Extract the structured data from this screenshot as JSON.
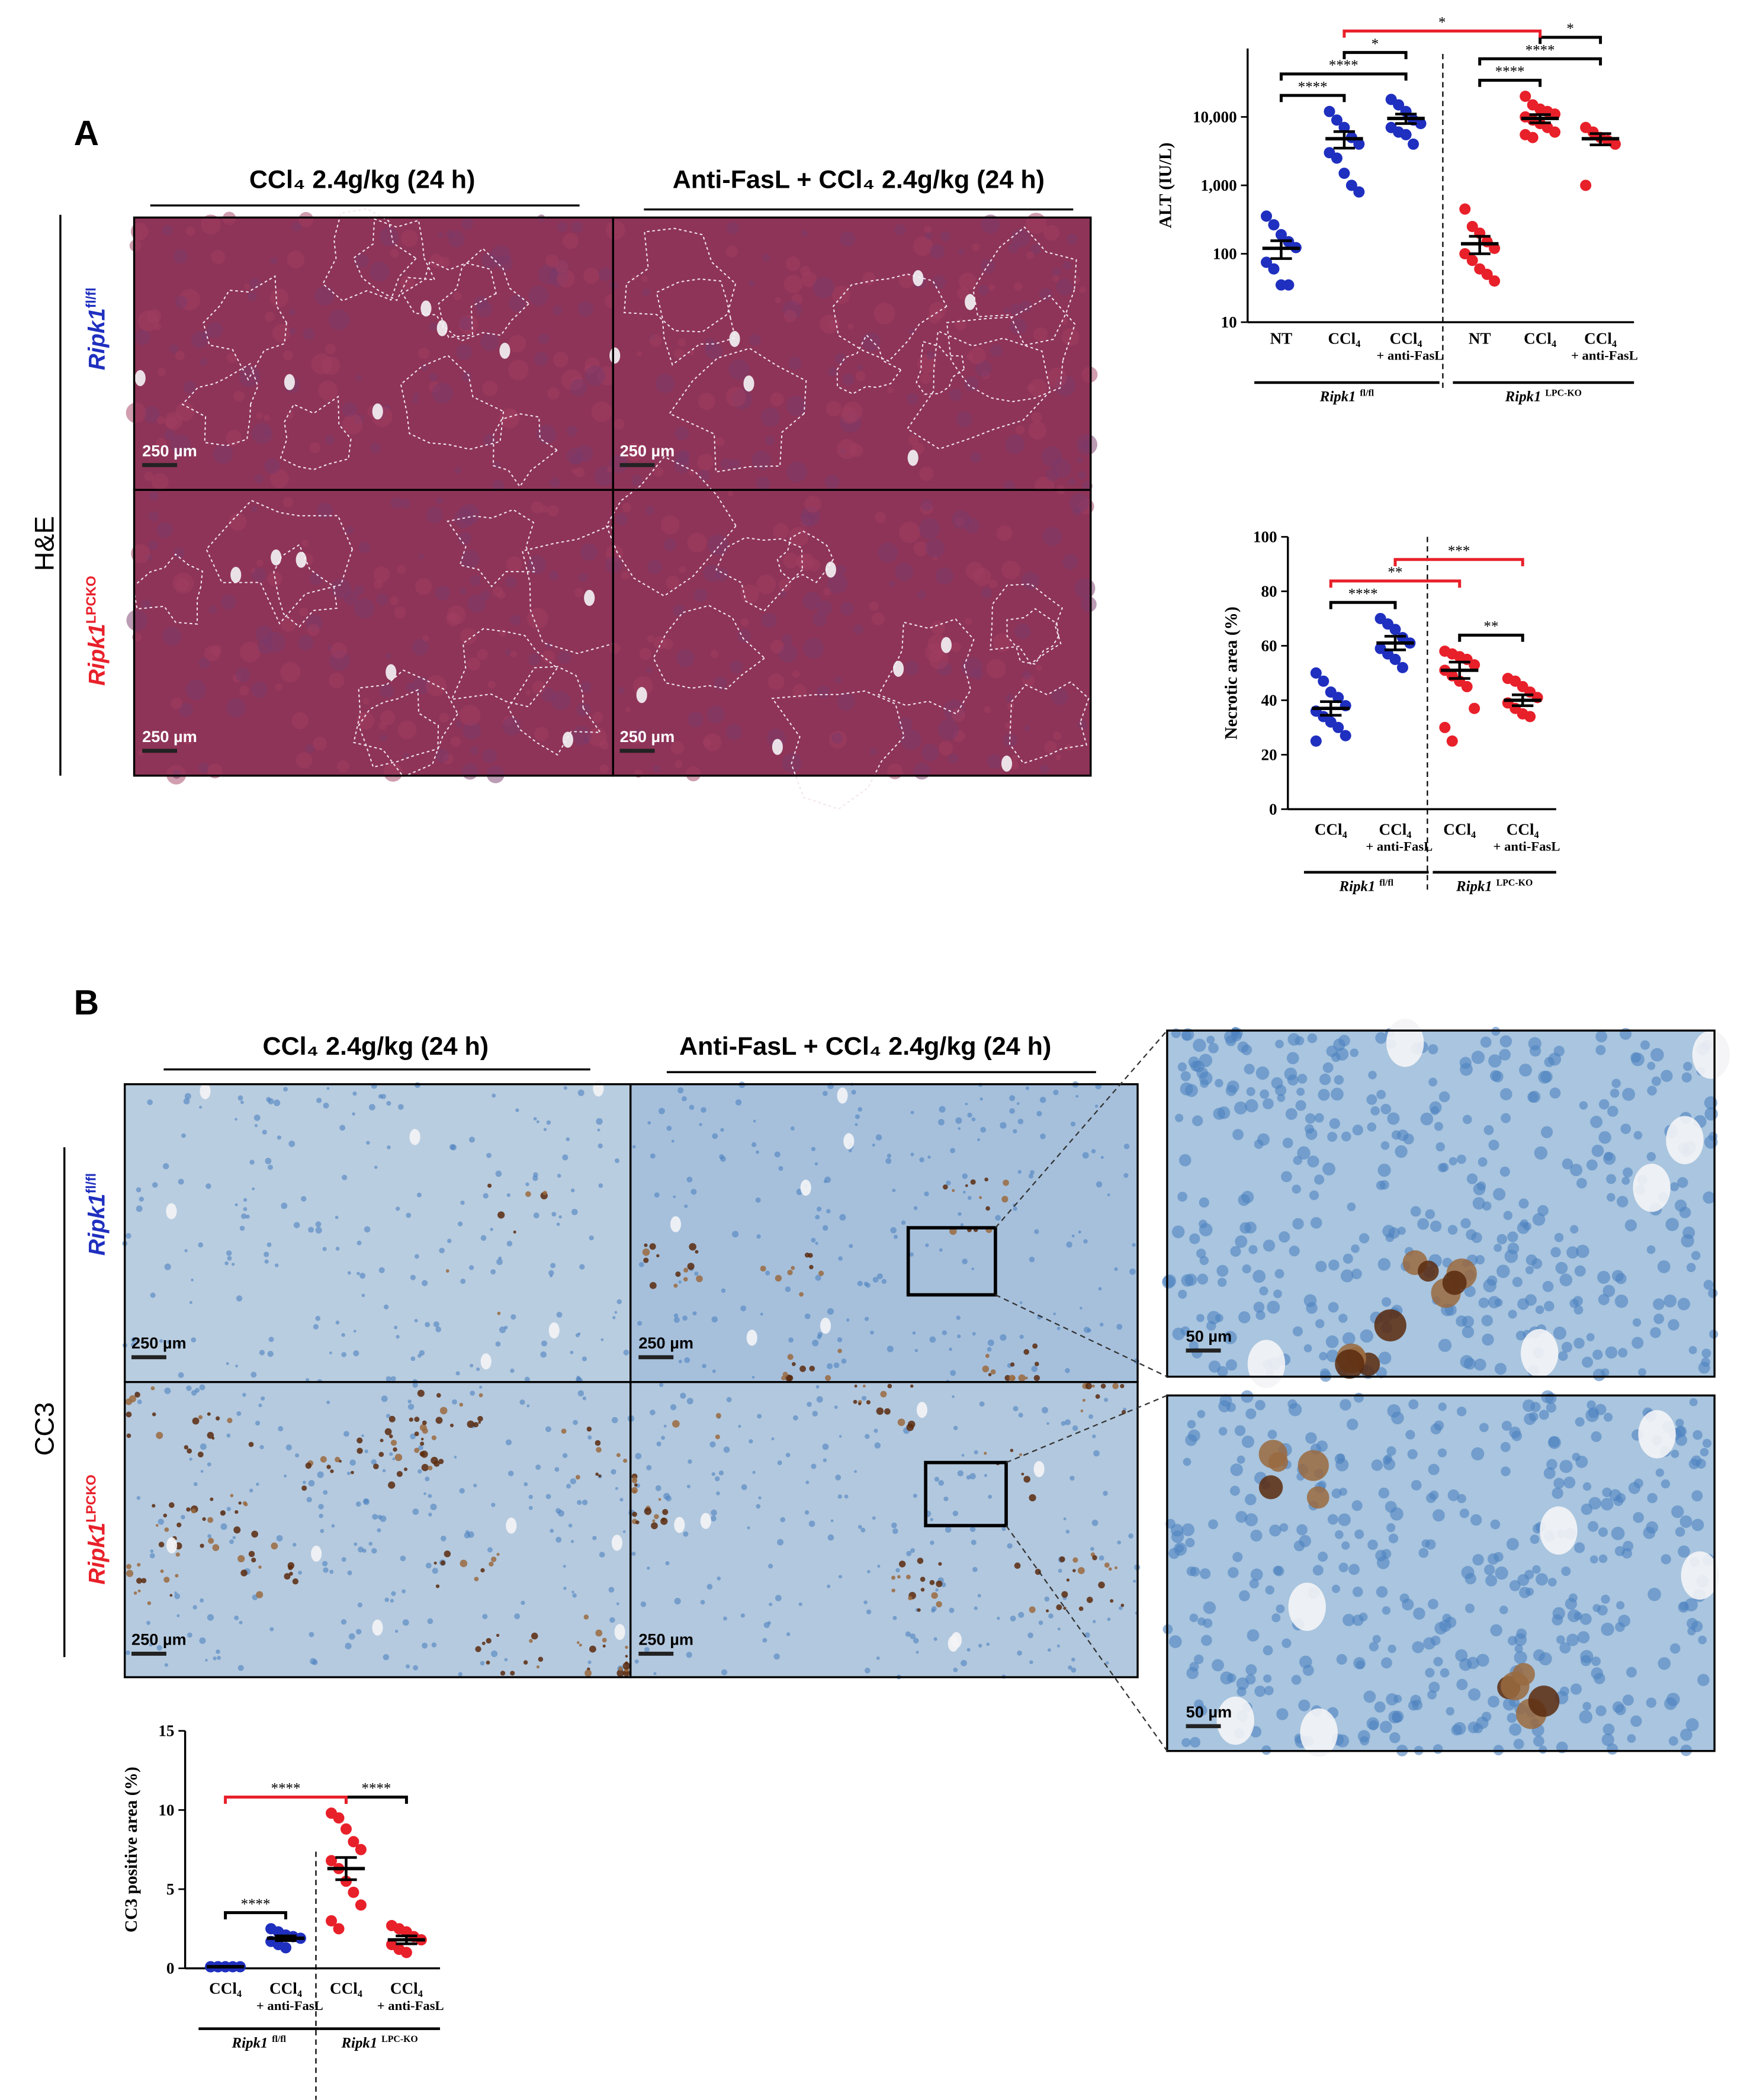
{
  "panel_a": {
    "label": "A",
    "stain": "H&E",
    "columns": [
      "CCl₄ 2.4g/kg (24 h)",
      "Anti-FasL + CCl₄ 2.4g/kg (24 h)"
    ],
    "rows": [
      {
        "name": "Ripk1",
        "sup": "fl/fl",
        "color": "#1f2fbf"
      },
      {
        "name": "Ripk1",
        "sup": "LPCKO",
        "color": "#e8202a"
      }
    ],
    "scale_bar": "250 µm"
  },
  "panel_b": {
    "label": "B",
    "stain": "CC3",
    "columns": [
      "CCl₄ 2.4g/kg (24 h)",
      "Anti-FasL + CCl₄ 2.4g/kg (24 h)"
    ],
    "rows": [
      {
        "name": "Ripk1",
        "sup": "fl/fl",
        "color": "#1f2fbf"
      },
      {
        "name": "Ripk1",
        "sup": "LPCKO",
        "color": "#e8202a"
      }
    ],
    "scale_bar": "250 µm",
    "inset_scale_bar": "50 µm"
  },
  "chart_data": [
    {
      "type": "scatter",
      "y_label": "ALT (IU/L)",
      "log_scale": true,
      "ylim": [
        10,
        100000
      ],
      "yticks": [
        10,
        100,
        {
          "value": 1000,
          "label": "1,000"
        },
        {
          "value": 10000,
          "label": "10,000"
        }
      ],
      "groups": [
        {
          "name": "Ripk1",
          "sup": "fl/fl",
          "color": "#1f2fbf",
          "categories": [
            {
              "label": "NT",
              "values": [
                355,
                265,
                190,
                150,
                123,
                75,
                60,
                35,
                35
              ],
              "mean": 120,
              "sem": 35
            },
            {
              "label": "CCl₄",
              "values": [
                12000,
                9000,
                7000,
                5000,
                4000,
                3000,
                2500,
                1500,
                1000,
                800
              ],
              "mean": 4800,
              "sem": 1300
            },
            {
              "label": "CCl₄",
              "note": "+ anti-FasL",
              "values": [
                18000,
                15000,
                12000,
                9000,
                8000,
                7000,
                6000,
                5500,
                4000
              ],
              "mean": 9500,
              "sem": 1500
            }
          ]
        },
        {
          "name": "Ripk1",
          "sup": "LPC-KO",
          "color": "#e8202a",
          "categories": [
            {
              "label": "NT",
              "values": [
                450,
                250,
                200,
                150,
                120,
                100,
                80,
                60,
                50,
                40
              ],
              "mean": 140,
              "sem": 40
            },
            {
              "label": "CCl₄",
              "values": [
                20000,
                15000,
                13000,
                12000,
                11000,
                10000,
                9000,
                8000,
                7000,
                6000,
                5500,
                5000
              ],
              "mean": 9500,
              "sem": 1300
            },
            {
              "label": "CCl₄",
              "note": "+ anti-FasL",
              "values": [
                7000,
                6000,
                5000,
                4500,
                4000,
                1000
              ],
              "mean": 4800,
              "sem": 900
            }
          ]
        }
      ],
      "brackets": [
        {
          "from": 0,
          "to": 1,
          "label": "****",
          "color": "#000000"
        },
        {
          "from": 0,
          "to": 2,
          "label": "****",
          "color": "#000000"
        },
        {
          "from": 1,
          "to": 2,
          "label": "*",
          "color": "#000000"
        },
        {
          "from": 3,
          "to": 4,
          "label": "****",
          "color": "#000000"
        },
        {
          "from": 3,
          "to": 5,
          "label": "****",
          "color": "#000000"
        },
        {
          "from": 4,
          "to": 5,
          "label": "*",
          "color": "#000000"
        },
        {
          "from": 1,
          "to": 4,
          "label": "*",
          "color": "#e8202a"
        }
      ]
    },
    {
      "type": "scatter",
      "y_label": "Necrotic area (%)",
      "log_scale": false,
      "ylim": [
        0,
        100
      ],
      "yticks": [
        0,
        20,
        40,
        60,
        80,
        100
      ],
      "groups": [
        {
          "name": "Ripk1",
          "sup": "fl/fl",
          "color": "#1f2fbf",
          "categories": [
            {
              "label": "CCl₄",
              "values": [
                50,
                47,
                43,
                41,
                38,
                36,
                34,
                32,
                30,
                27,
                25
              ],
              "mean": 37,
              "sem": 2.5
            },
            {
              "label": "CCl₄",
              "note": "+ anti-FasL",
              "values": [
                70,
                68,
                66,
                63,
                61,
                59,
                57,
                55,
                52
              ],
              "mean": 61,
              "sem": 2.5
            }
          ]
        },
        {
          "name": "Ripk1",
          "sup": "LPC-KO",
          "color": "#e8202a",
          "categories": [
            {
              "label": "CCl₄",
              "values": [
                58,
                57,
                56,
                55,
                53,
                51,
                49,
                47,
                45,
                37,
                30,
                25
              ],
              "mean": 51,
              "sem": 3
            },
            {
              "label": "CCl₄",
              "note": "+ anti-FasL",
              "values": [
                48,
                47,
                45,
                43,
                41,
                39,
                37,
                35,
                34
              ],
              "mean": 40,
              "sem": 2
            }
          ]
        }
      ],
      "brackets": [
        {
          "from": 0,
          "to": 1,
          "label": "****",
          "color": "#000000"
        },
        {
          "from": 2,
          "to": 3,
          "label": "**",
          "color": "#000000"
        },
        {
          "from": 0,
          "to": 2,
          "label": "**",
          "color": "#e8202a"
        },
        {
          "from": 1,
          "to": 3,
          "label": "***",
          "color": "#e8202a"
        }
      ]
    },
    {
      "type": "scatter",
      "y_label": "CC3 positive area (%)",
      "log_scale": false,
      "ylim": [
        0,
        15
      ],
      "yticks": [
        0,
        5,
        10,
        15
      ],
      "groups": [
        {
          "name": "Ripk1",
          "sup": "fl/fl",
          "color": "#1f2fbf",
          "categories": [
            {
              "label": "CCl₄",
              "values": [
                0.1,
                0.1,
                0.1,
                0.1,
                0.1,
                0.1,
                0.1,
                0.1
              ],
              "mean": 0.1,
              "sem": 0.02
            },
            {
              "label": "CCl₄",
              "note": "+ anti-FasL",
              "values": [
                2.5,
                2.3,
                2.1,
                2.0,
                1.9,
                1.7,
                1.5,
                1.3
              ],
              "mean": 1.9,
              "sem": 0.15
            }
          ]
        },
        {
          "name": "Ripk1",
          "sup": "LPC-KO",
          "color": "#e8202a",
          "categories": [
            {
              "label": "CCl₄",
              "values": [
                9.8,
                9.5,
                8.8,
                8.0,
                7.5,
                6.8,
                6.3,
                5.5,
                4.8,
                4.0,
                3.0,
                2.5
              ],
              "mean": 6.3,
              "sem": 0.7
            },
            {
              "label": "CCl₄",
              "note": "+ anti-FasL",
              "values": [
                2.7,
                2.5,
                2.3,
                2.0,
                1.8,
                1.5,
                1.2,
                1.0
              ],
              "mean": 1.8,
              "sem": 0.25
            }
          ]
        }
      ],
      "brackets": [
        {
          "from": 0,
          "to": 1,
          "label": "****",
          "color": "#000000"
        },
        {
          "from": 2,
          "to": 3,
          "label": "****",
          "color": "#000000"
        },
        {
          "from": 0,
          "to": 2,
          "label": "****",
          "color": "#e8202a"
        }
      ]
    }
  ]
}
